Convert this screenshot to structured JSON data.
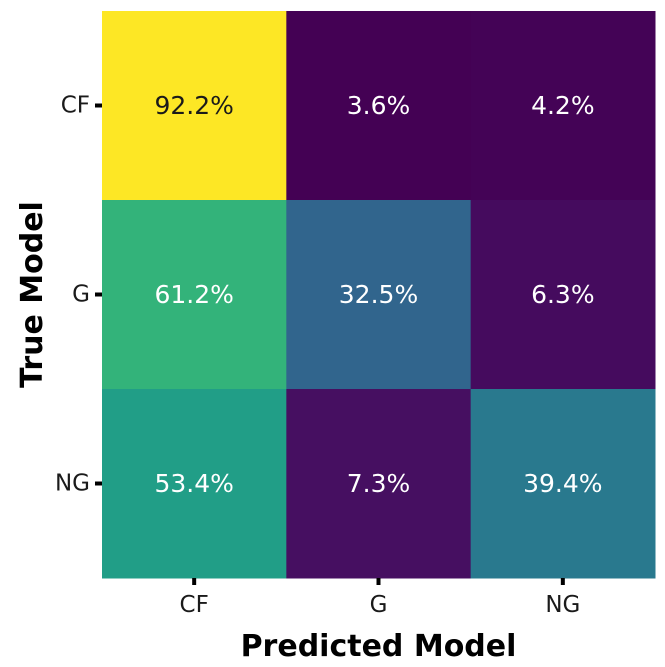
{
  "chart_data": {
    "type": "heatmap",
    "x_categories": [
      "CF",
      "G",
      "NG"
    ],
    "y_categories": [
      "CF",
      "G",
      "NG"
    ],
    "values": [
      [
        92.2,
        3.6,
        4.2
      ],
      [
        61.2,
        32.5,
        6.3
      ],
      [
        53.4,
        7.3,
        39.4
      ]
    ],
    "cell_labels": [
      [
        "92.2%",
        "3.6%",
        "4.2%"
      ],
      [
        "61.2%",
        "32.5%",
        "6.3%"
      ],
      [
        "53.4%",
        "7.3%",
        "39.4%"
      ]
    ],
    "xlabel": "Predicted Model",
    "ylabel": "True Model",
    "colormap": "viridis",
    "color_range": [
      3.6,
      92.2
    ]
  }
}
